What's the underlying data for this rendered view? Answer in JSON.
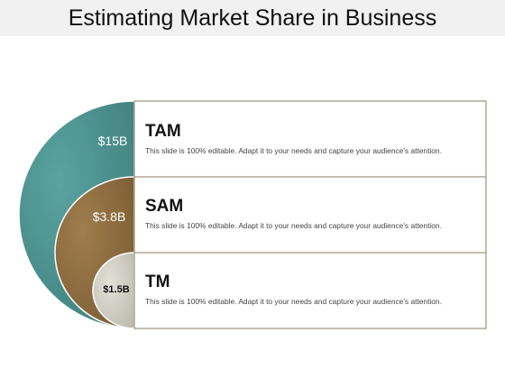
{
  "title": "Estimating Market Share in Business",
  "rows": [
    {
      "value": "$15B",
      "heading": "TAM",
      "description": "This slide is 100% editable. Adapt it to your needs and capture your audience's attention."
    },
    {
      "value": "$3.8B",
      "heading": "SAM",
      "description": "This slide is 100% editable. Adapt it to your needs and capture your audience's attention."
    },
    {
      "value": "$1.5B",
      "heading": "TM",
      "description": "This slide is 100% editable. Adapt it to your needs and capture your audience's attention."
    }
  ],
  "colors": {
    "tam": "#4a8f8c",
    "sam": "#8a6a3f",
    "tm": "#c9c7bd",
    "border": "#8a7f63",
    "title_bar": "#f1f1f1"
  }
}
